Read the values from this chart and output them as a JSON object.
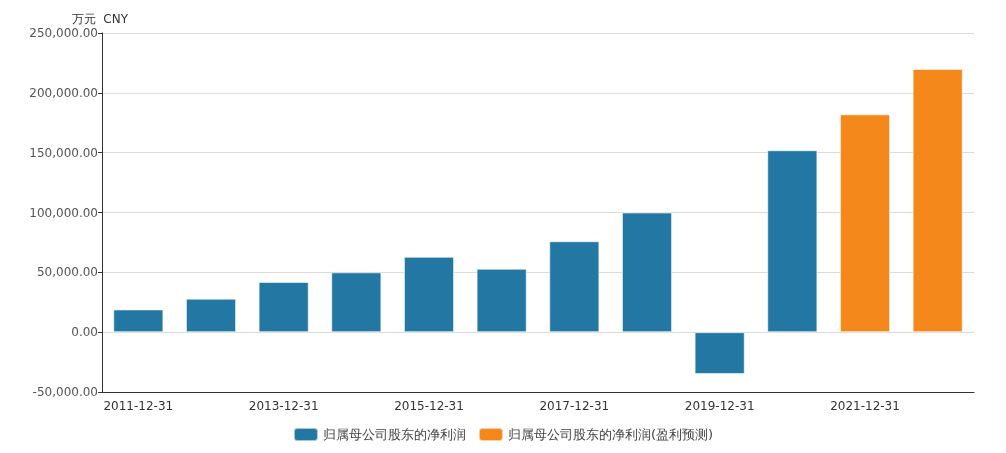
{
  "chart_data": {
    "type": "bar",
    "ylabel": "万元  CNY",
    "categories": [
      "2011-12-31",
      null,
      "2013-12-31",
      null,
      "2015-12-31",
      null,
      "2017-12-31",
      null,
      "2019-12-31",
      null,
      "2021-12-31",
      null
    ],
    "series": [
      {
        "name": "归属母公司股东的净利润",
        "color": "#2277a3",
        "values": [
          19000,
          28000,
          42000,
          50000,
          63000,
          53000,
          76000,
          100000,
          -35000,
          152000,
          null,
          null
        ]
      },
      {
        "name": "归属母公司股东的净利润(盈利预测)",
        "color": "#f5881a",
        "values": [
          null,
          null,
          null,
          null,
          null,
          null,
          null,
          null,
          null,
          null,
          182000,
          220000
        ]
      }
    ],
    "ylim": [
      -50000,
      250000
    ],
    "yticks": [
      {
        "value": -50000,
        "label": "-50,000.00"
      },
      {
        "value": 0,
        "label": "0.00"
      },
      {
        "value": 50000,
        "label": "50,000.00"
      },
      {
        "value": 100000,
        "label": "100,000.00"
      },
      {
        "value": 150000,
        "label": "150,000.00"
      },
      {
        "value": 200000,
        "label": "200,000.00"
      },
      {
        "value": 250000,
        "label": "250,000.00"
      }
    ],
    "grid": "y",
    "legend": "bottom"
  }
}
